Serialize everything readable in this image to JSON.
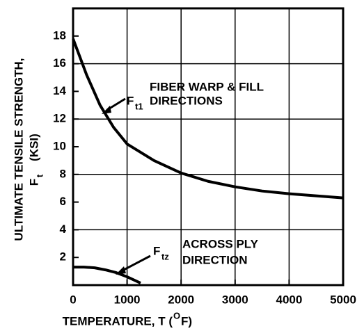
{
  "chart_data": {
    "type": "line",
    "ylabel": [
      "ULTIMATE TENSILE STRENGTH,",
      "F",
      "t",
      "(KSI)"
    ],
    "xlabel": [
      "TEMPERATURE, T (",
      "O",
      "F)"
    ],
    "xlim": [
      0,
      5000
    ],
    "xticks": [
      0,
      1000,
      2000,
      3000,
      4000,
      5000
    ],
    "ylim": [
      0,
      20
    ],
    "yticks": [
      2,
      4,
      6,
      8,
      10,
      12,
      14,
      16,
      18
    ],
    "xgrid": [
      1000,
      2000,
      3000,
      4000
    ],
    "ygrid": [
      4,
      8,
      12,
      16
    ],
    "color": "#000000",
    "series": [
      {
        "name": [
          "F",
          "t1",
          "FIBER WARP & FILL",
          "DIRECTIONS"
        ],
        "x": [
          0,
          250,
          500,
          750,
          1000,
          1500,
          2000,
          2500,
          3000,
          3500,
          4000,
          4500,
          5000
        ],
        "values": [
          17.8,
          15.2,
          13.0,
          11.4,
          10.2,
          9.0,
          8.1,
          7.5,
          7.1,
          6.8,
          6.6,
          6.45,
          6.3
        ]
      },
      {
        "name": [
          "F",
          "tz",
          "ACROSS PLY",
          "DIRECTION"
        ],
        "x": [
          0,
          200,
          400,
          600,
          800,
          1000,
          1250
        ],
        "values": [
          1.3,
          1.3,
          1.25,
          1.1,
          0.9,
          0.6,
          0.15
        ]
      }
    ]
  }
}
